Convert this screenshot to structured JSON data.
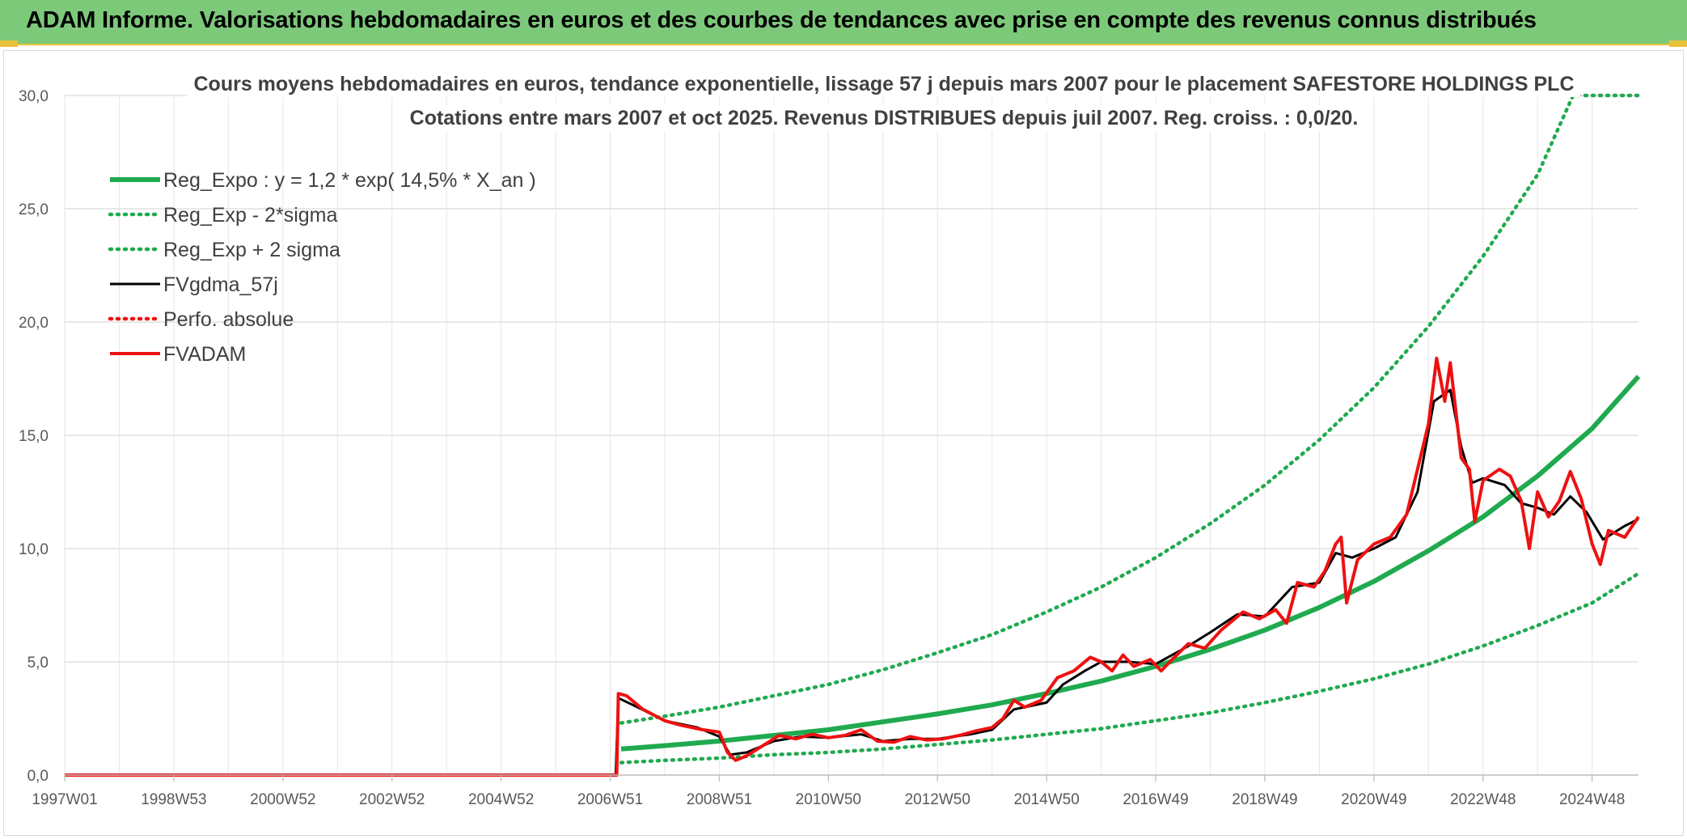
{
  "banner": {
    "title": "ADAM Informe. Valorisations hebdomadaires en euros et des courbes de tendances avec prise en compte des revenus connus distribués"
  },
  "colors": {
    "banner_bg": "#7dc97a",
    "trend_green": "#1faa4f",
    "price_red": "#ee1111",
    "ma_black": "#000000",
    "grid": "#d9d9d9"
  },
  "chart_data": {
    "type": "line",
    "title": [
      "Cours moyens hebdomadaires en euros, tendance exponentielle, lissage 57 j depuis mars 2007 pour le placement SAFESTORE HOLDINGS PLC",
      "Cotations entre mars 2007 et oct 2025. Revenus DISTRIBUES depuis juil 2007. Reg. croiss. : 0,0/20."
    ],
    "xlabel": "",
    "ylabel": "",
    "x_range": [
      1997.0,
      2025.85
    ],
    "ylim": [
      0,
      30
    ],
    "y_ticks": [
      "0,0",
      "5,0",
      "10,0",
      "15,0",
      "20,0",
      "25,0",
      "30,0"
    ],
    "x_ticks": [
      {
        "label": "1997W01",
        "x": 1997.0
      },
      {
        "label": "1998W53",
        "x": 1999.0
      },
      {
        "label": "2000W52",
        "x": 2001.0
      },
      {
        "label": "2002W52",
        "x": 2003.0
      },
      {
        "label": "2004W52",
        "x": 2005.0
      },
      {
        "label": "2006W51",
        "x": 2007.0
      },
      {
        "label": "2008W51",
        "x": 2009.0
      },
      {
        "label": "2010W50",
        "x": 2011.0
      },
      {
        "label": "2012W50",
        "x": 2013.0
      },
      {
        "label": "2014W50",
        "x": 2015.0
      },
      {
        "label": "2016W49",
        "x": 2017.0
      },
      {
        "label": "2018W49",
        "x": 2019.0
      },
      {
        "label": "2020W49",
        "x": 2021.0
      },
      {
        "label": "2022W48",
        "x": 2023.0
      },
      {
        "label": "2024W48",
        "x": 2025.0
      }
    ],
    "grid": true,
    "legend_position": "top-left",
    "series": [
      {
        "name": "Reg_Expo : y = 1,2 * exp( 14,5% *  X_an )",
        "style": "solid-thick",
        "color": "#1faa4f",
        "points": [
          [
            2007.2,
            1.15
          ],
          [
            2008.0,
            1.3
          ],
          [
            2009.0,
            1.5
          ],
          [
            2010.0,
            1.75
          ],
          [
            2011.0,
            2.0
          ],
          [
            2012.0,
            2.35
          ],
          [
            2013.0,
            2.7
          ],
          [
            2014.0,
            3.1
          ],
          [
            2015.0,
            3.6
          ],
          [
            2016.0,
            4.15
          ],
          [
            2017.0,
            4.8
          ],
          [
            2018.0,
            5.55
          ],
          [
            2019.0,
            6.4
          ],
          [
            2020.0,
            7.4
          ],
          [
            2021.0,
            8.55
          ],
          [
            2022.0,
            9.9
          ],
          [
            2023.0,
            11.4
          ],
          [
            2024.0,
            13.2
          ],
          [
            2025.0,
            15.3
          ],
          [
            2025.85,
            17.6
          ]
        ]
      },
      {
        "name": "Reg_Exp - 2*sigma",
        "style": "dotted",
        "color": "#1faa4f",
        "points": [
          [
            2007.2,
            0.55
          ],
          [
            2008.0,
            0.65
          ],
          [
            2009.0,
            0.75
          ],
          [
            2010.0,
            0.9
          ],
          [
            2011.0,
            1.0
          ],
          [
            2012.0,
            1.15
          ],
          [
            2013.0,
            1.35
          ],
          [
            2014.0,
            1.55
          ],
          [
            2015.0,
            1.8
          ],
          [
            2016.0,
            2.05
          ],
          [
            2017.0,
            2.4
          ],
          [
            2018.0,
            2.75
          ],
          [
            2019.0,
            3.2
          ],
          [
            2020.0,
            3.7
          ],
          [
            2021.0,
            4.25
          ],
          [
            2022.0,
            4.9
          ],
          [
            2023.0,
            5.7
          ],
          [
            2024.0,
            6.6
          ],
          [
            2025.0,
            7.6
          ],
          [
            2025.85,
            8.9
          ]
        ]
      },
      {
        "name": "Reg_Exp + 2 sigma",
        "style": "dotted",
        "color": "#1faa4f",
        "points": [
          [
            2007.2,
            2.3
          ],
          [
            2008.0,
            2.6
          ],
          [
            2009.0,
            3.0
          ],
          [
            2010.0,
            3.5
          ],
          [
            2011.0,
            4.0
          ],
          [
            2012.0,
            4.65
          ],
          [
            2013.0,
            5.4
          ],
          [
            2014.0,
            6.2
          ],
          [
            2015.0,
            7.2
          ],
          [
            2016.0,
            8.3
          ],
          [
            2017.0,
            9.6
          ],
          [
            2018.0,
            11.1
          ],
          [
            2019.0,
            12.8
          ],
          [
            2020.0,
            14.8
          ],
          [
            2021.0,
            17.1
          ],
          [
            2022.0,
            19.8
          ],
          [
            2023.0,
            22.9
          ],
          [
            2024.0,
            26.5
          ],
          [
            2024.65,
            30.0
          ],
          [
            2025.85,
            30.0
          ]
        ]
      },
      {
        "name": "FVgdma_57j",
        "style": "solid",
        "color": "#000000",
        "points": [
          [
            1997.0,
            0
          ],
          [
            2007.1,
            0
          ],
          [
            2007.15,
            3.4
          ],
          [
            2007.5,
            3.0
          ],
          [
            2008.0,
            2.4
          ],
          [
            2008.6,
            2.1
          ],
          [
            2009.0,
            1.7
          ],
          [
            2009.2,
            0.9
          ],
          [
            2009.5,
            1.0
          ],
          [
            2010.0,
            1.5
          ],
          [
            2010.5,
            1.7
          ],
          [
            2011.0,
            1.65
          ],
          [
            2011.6,
            1.8
          ],
          [
            2012.0,
            1.5
          ],
          [
            2012.5,
            1.6
          ],
          [
            2013.0,
            1.6
          ],
          [
            2013.6,
            1.8
          ],
          [
            2014.0,
            2.0
          ],
          [
            2014.4,
            2.9
          ],
          [
            2015.0,
            3.2
          ],
          [
            2015.3,
            4.0
          ],
          [
            2015.7,
            4.6
          ],
          [
            2016.0,
            5.0
          ],
          [
            2016.5,
            5.0
          ],
          [
            2017.0,
            4.9
          ],
          [
            2017.6,
            5.7
          ],
          [
            2018.0,
            6.3
          ],
          [
            2018.5,
            7.1
          ],
          [
            2019.0,
            7.0
          ],
          [
            2019.5,
            8.3
          ],
          [
            2020.0,
            8.5
          ],
          [
            2020.3,
            9.8
          ],
          [
            2020.6,
            9.6
          ],
          [
            2021.0,
            10.0
          ],
          [
            2021.4,
            10.5
          ],
          [
            2021.8,
            12.5
          ],
          [
            2022.1,
            16.5
          ],
          [
            2022.4,
            17.0
          ],
          [
            2022.6,
            14.5
          ],
          [
            2022.8,
            12.9
          ],
          [
            2023.0,
            13.1
          ],
          [
            2023.4,
            12.8
          ],
          [
            2023.7,
            12.0
          ],
          [
            2024.0,
            11.8
          ],
          [
            2024.3,
            11.5
          ],
          [
            2024.6,
            12.3
          ],
          [
            2024.9,
            11.6
          ],
          [
            2025.2,
            10.4
          ],
          [
            2025.6,
            11.0
          ],
          [
            2025.85,
            11.3
          ]
        ]
      },
      {
        "name": "Perfo. absolue",
        "style": "dotted",
        "color": "#ee1111",
        "points": []
      },
      {
        "name": "FVADAM",
        "style": "solid-thick",
        "color": "#ee1111",
        "points": [
          [
            1997.0,
            0
          ],
          [
            2007.12,
            0
          ],
          [
            2007.15,
            3.6
          ],
          [
            2007.3,
            3.5
          ],
          [
            2007.6,
            2.9
          ],
          [
            2008.0,
            2.4
          ],
          [
            2008.3,
            2.2
          ],
          [
            2008.7,
            2.0
          ],
          [
            2009.0,
            1.9
          ],
          [
            2009.15,
            1.0
          ],
          [
            2009.3,
            0.65
          ],
          [
            2009.5,
            0.85
          ],
          [
            2009.8,
            1.3
          ],
          [
            2010.1,
            1.75
          ],
          [
            2010.4,
            1.6
          ],
          [
            2010.7,
            1.8
          ],
          [
            2011.0,
            1.65
          ],
          [
            2011.3,
            1.75
          ],
          [
            2011.6,
            2.0
          ],
          [
            2011.9,
            1.5
          ],
          [
            2012.2,
            1.45
          ],
          [
            2012.5,
            1.7
          ],
          [
            2012.8,
            1.55
          ],
          [
            2013.1,
            1.6
          ],
          [
            2013.4,
            1.75
          ],
          [
            2013.7,
            1.95
          ],
          [
            2014.0,
            2.1
          ],
          [
            2014.2,
            2.5
          ],
          [
            2014.4,
            3.3
          ],
          [
            2014.6,
            3.0
          ],
          [
            2014.9,
            3.3
          ],
          [
            2015.2,
            4.3
          ],
          [
            2015.5,
            4.6
          ],
          [
            2015.8,
            5.2
          ],
          [
            2016.0,
            5.0
          ],
          [
            2016.2,
            4.6
          ],
          [
            2016.4,
            5.3
          ],
          [
            2016.6,
            4.8
          ],
          [
            2016.9,
            5.1
          ],
          [
            2017.1,
            4.6
          ],
          [
            2017.3,
            5.1
          ],
          [
            2017.6,
            5.8
          ],
          [
            2017.9,
            5.6
          ],
          [
            2018.2,
            6.4
          ],
          [
            2018.6,
            7.2
          ],
          [
            2018.9,
            6.9
          ],
          [
            2019.2,
            7.3
          ],
          [
            2019.4,
            6.7
          ],
          [
            2019.6,
            8.5
          ],
          [
            2019.9,
            8.3
          ],
          [
            2020.1,
            9.0
          ],
          [
            2020.3,
            10.2
          ],
          [
            2020.4,
            10.5
          ],
          [
            2020.5,
            7.6
          ],
          [
            2020.7,
            9.5
          ],
          [
            2021.0,
            10.2
          ],
          [
            2021.3,
            10.5
          ],
          [
            2021.6,
            11.5
          ],
          [
            2021.8,
            13.5
          ],
          [
            2022.0,
            15.5
          ],
          [
            2022.15,
            18.4
          ],
          [
            2022.3,
            16.5
          ],
          [
            2022.4,
            18.2
          ],
          [
            2022.6,
            14.0
          ],
          [
            2022.75,
            13.5
          ],
          [
            2022.85,
            11.2
          ],
          [
            2023.0,
            13.0
          ],
          [
            2023.3,
            13.5
          ],
          [
            2023.5,
            13.2
          ],
          [
            2023.7,
            12.1
          ],
          [
            2023.85,
            10.0
          ],
          [
            2024.0,
            12.5
          ],
          [
            2024.2,
            11.4
          ],
          [
            2024.4,
            12.1
          ],
          [
            2024.6,
            13.4
          ],
          [
            2024.8,
            12.2
          ],
          [
            2025.0,
            10.2
          ],
          [
            2025.15,
            9.3
          ],
          [
            2025.3,
            10.8
          ],
          [
            2025.6,
            10.5
          ],
          [
            2025.85,
            11.4
          ]
        ]
      }
    ]
  }
}
